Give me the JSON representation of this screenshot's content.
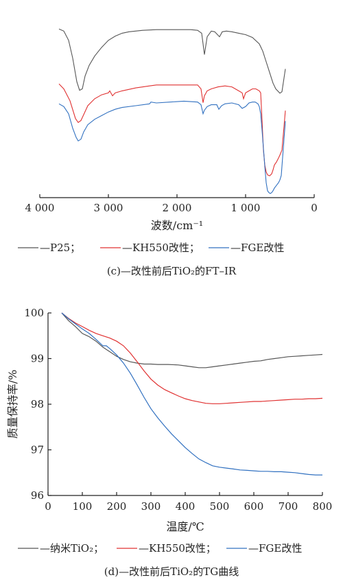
{
  "chart_data": [
    {
      "type": "line",
      "xlabel": "波数/cm⁻¹",
      "xlim": [
        4000,
        0
      ],
      "x_ticks": [
        "4 000",
        "3 000",
        "2 000",
        "1 000",
        "0"
      ],
      "y_ticks": [],
      "legend": {
        "placement": "bottom",
        "items": [
          "—P25；",
          "—KH550改性；",
          "—FGE改性"
        ]
      },
      "caption": "(c)—改性前后TiO₂的FT–IR",
      "series": [
        {
          "name": "P25",
          "color": "#555555",
          "x": [
            3720,
            3650,
            3580,
            3520,
            3460,
            3420,
            3380,
            3340,
            3280,
            3200,
            3100,
            3000,
            2900,
            2800,
            2700,
            2500,
            2300,
            2100,
            1900,
            1800,
            1700,
            1640,
            1600,
            1560,
            1500,
            1450,
            1400,
            1380,
            1340,
            1280,
            1200,
            1100,
            1000,
            900,
            800,
            750,
            700,
            650,
            600,
            560,
            500,
            470,
            420
          ],
          "y": [
            96,
            93,
            80,
            55,
            22,
            10,
            12,
            30,
            45,
            58,
            70,
            80,
            86,
            90,
            92,
            94,
            95,
            95,
            95,
            95,
            94,
            90,
            60,
            85,
            93,
            92,
            87,
            85,
            92,
            93,
            92,
            90,
            88,
            84,
            75,
            65,
            50,
            35,
            20,
            12,
            6,
            8,
            40
          ]
        },
        {
          "name": "KH550改性",
          "color": "#e03030",
          "x": [
            3720,
            3650,
            3560,
            3480,
            3440,
            3400,
            3360,
            3300,
            3200,
            3100,
            3000,
            2980,
            2940,
            2900,
            2800,
            2600,
            2400,
            2300,
            2100,
            1900,
            1700,
            1650,
            1620,
            1600,
            1560,
            1500,
            1400,
            1300,
            1200,
            1100,
            1050,
            1030,
            1000,
            950,
            900,
            850,
            800,
            780,
            760,
            740,
            720,
            700,
            680,
            650,
            620,
            600,
            580,
            550,
            520,
            500,
            470,
            420
          ],
          "y": [
            97,
            92,
            80,
            62,
            58,
            60,
            66,
            75,
            82,
            86,
            88,
            90,
            85,
            88,
            90,
            93,
            95,
            96,
            96,
            96,
            96,
            92,
            78,
            85,
            90,
            92,
            94,
            95,
            94,
            90,
            88,
            82,
            88,
            90,
            92,
            92,
            90,
            88,
            60,
            30,
            15,
            8,
            5,
            4,
            6,
            10,
            15,
            18,
            22,
            25,
            30,
            70
          ]
        },
        {
          "name": "FGE改性",
          "color": "#3070c0",
          "x": [
            3720,
            3650,
            3580,
            3520,
            3470,
            3440,
            3400,
            3360,
            3300,
            3200,
            3100,
            3000,
            2900,
            2800,
            2600,
            2400,
            2380,
            2300,
            2100,
            1900,
            1700,
            1650,
            1620,
            1600,
            1560,
            1500,
            1420,
            1390,
            1350,
            1300,
            1200,
            1100,
            1050,
            1000,
            950,
            900,
            860,
            820,
            800,
            780,
            760,
            740,
            720,
            700,
            680,
            660,
            640,
            620,
            600,
            580,
            560,
            540,
            520,
            500,
            480,
            420
          ],
          "y": [
            99,
            96,
            88,
            72,
            62,
            58,
            60,
            68,
            76,
            82,
            86,
            90,
            93,
            95,
            97,
            99,
            101,
            100,
            101,
            102,
            101,
            98,
            88,
            92,
            96,
            98,
            98,
            93,
            97,
            99,
            100,
            98,
            94,
            96,
            100,
            101,
            101,
            99,
            96,
            88,
            70,
            50,
            30,
            12,
            3,
            1,
            0,
            1,
            3,
            6,
            8,
            10,
            12,
            15,
            20,
            80
          ]
        }
      ]
    },
    {
      "type": "line",
      "xlabel": "温度/℃",
      "ylabel": "质量保持率/%",
      "xlim": [
        0,
        800
      ],
      "ylim": [
        96,
        100
      ],
      "x_ticks": [
        "0",
        "100",
        "200",
        "300",
        "400",
        "500",
        "600",
        "700",
        "800"
      ],
      "y_ticks": [
        "96",
        "97",
        "98",
        "99",
        "100"
      ],
      "legend": {
        "placement": "bottom",
        "items": [
          "—纳米TiO₂；",
          "—KH550改性；",
          "—FGE改性"
        ]
      },
      "caption": "(d)—改性前后TiO₂的TG曲线",
      "series": [
        {
          "name": "纳米TiO₂",
          "color": "#555555",
          "x": [
            40,
            60,
            80,
            100,
            120,
            140,
            160,
            170,
            180,
            200,
            220,
            240,
            260,
            280,
            300,
            320,
            350,
            380,
            400,
            420,
            440,
            460,
            480,
            500,
            520,
            540,
            560,
            580,
            600,
            620,
            640,
            660,
            680,
            700,
            720,
            740,
            760,
            780,
            800
          ],
          "y": [
            100,
            99.83,
            99.7,
            99.55,
            99.48,
            99.38,
            99.25,
            99.2,
            99.15,
            99.05,
            98.98,
            98.93,
            98.9,
            98.88,
            98.88,
            98.87,
            98.87,
            98.86,
            98.84,
            98.82,
            98.8,
            98.8,
            98.82,
            98.84,
            98.86,
            98.88,
            98.9,
            98.92,
            98.94,
            98.95,
            98.98,
            99.0,
            99.02,
            99.04,
            99.05,
            99.06,
            99.07,
            99.08,
            99.09
          ]
        },
        {
          "name": "KH550改性",
          "color": "#e03030",
          "x": [
            40,
            60,
            80,
            100,
            120,
            140,
            160,
            180,
            200,
            220,
            240,
            260,
            280,
            300,
            320,
            340,
            360,
            380,
            400,
            420,
            440,
            460,
            480,
            500,
            520,
            540,
            560,
            580,
            600,
            620,
            640,
            660,
            680,
            700,
            720,
            740,
            760,
            780,
            800
          ],
          "y": [
            100,
            99.88,
            99.78,
            99.7,
            99.62,
            99.55,
            99.5,
            99.45,
            99.38,
            99.28,
            99.12,
            98.93,
            98.73,
            98.55,
            98.42,
            98.32,
            98.25,
            98.18,
            98.12,
            98.08,
            98.05,
            98.02,
            98.01,
            98.01,
            98.02,
            98.03,
            98.04,
            98.05,
            98.06,
            98.06,
            98.07,
            98.08,
            98.09,
            98.1,
            98.11,
            98.11,
            98.12,
            98.12,
            98.13
          ]
        },
        {
          "name": "FGE改性",
          "color": "#3070c0",
          "x": [
            40,
            60,
            80,
            100,
            120,
            140,
            160,
            170,
            180,
            200,
            220,
            240,
            260,
            280,
            300,
            320,
            340,
            360,
            380,
            400,
            420,
            440,
            460,
            480,
            500,
            520,
            540,
            560,
            580,
            600,
            620,
            640,
            660,
            680,
            700,
            720,
            740,
            760,
            780,
            800
          ],
          "y": [
            100,
            99.87,
            99.76,
            99.65,
            99.55,
            99.42,
            99.28,
            99.28,
            99.22,
            99.08,
            98.9,
            98.68,
            98.42,
            98.15,
            97.9,
            97.7,
            97.52,
            97.35,
            97.2,
            97.05,
            96.92,
            96.8,
            96.72,
            96.65,
            96.62,
            96.6,
            96.58,
            96.56,
            96.55,
            96.54,
            96.53,
            96.53,
            96.52,
            96.52,
            96.51,
            96.5,
            96.48,
            96.46,
            96.45,
            96.45
          ]
        }
      ]
    }
  ]
}
